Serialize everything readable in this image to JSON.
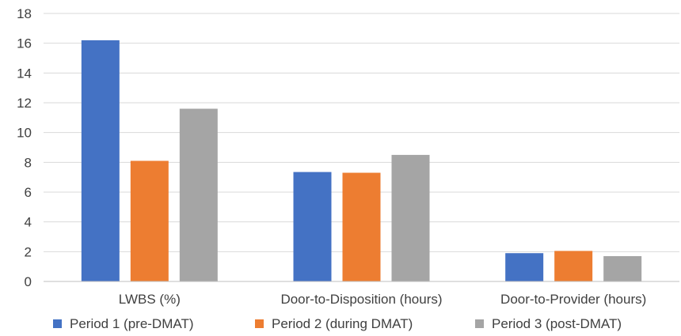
{
  "chart_data": {
    "type": "bar",
    "categories": [
      "LWBS (%)",
      "Door-to-Disposition (hours)",
      "Door-to-Provider (hours)"
    ],
    "series": [
      {
        "name": "Period 1 (pre-DMAT)",
        "values": [
          16.2,
          7.35,
          1.9
        ],
        "color": "#4472c4"
      },
      {
        "name": "Period 2 (during DMAT)",
        "values": [
          8.1,
          7.3,
          2.05
        ],
        "color": "#ed7d31"
      },
      {
        "name": "Period 3 (post-DMAT)",
        "values": [
          11.6,
          8.5,
          1.7
        ],
        "color": "#a5a5a5"
      }
    ],
    "ylim": [
      0,
      18
    ],
    "yticks": [
      0,
      2,
      4,
      6,
      8,
      10,
      12,
      14,
      16,
      18
    ],
    "grid": true,
    "legend_position": "bottom",
    "title": "",
    "xlabel": "",
    "ylabel": ""
  }
}
